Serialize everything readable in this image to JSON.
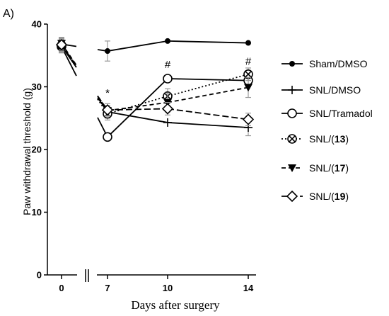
{
  "panel_label": "A)",
  "chart_data": {
    "type": "line",
    "xlabel": "Days after surgery",
    "ylabel": "Paw withdrawal threshold (g)",
    "ylim": [
      0,
      40
    ],
    "yticks": [
      "0",
      "10",
      "20",
      "30",
      "40"
    ],
    "x": [
      0,
      7,
      10,
      14
    ],
    "xticks": [
      "0",
      "7",
      "10",
      "14"
    ],
    "axis_break": "between 0 and 7",
    "series": [
      {
        "name": "Sham/DMSO",
        "marker": "filled-circle",
        "line": "solid",
        "values": [
          36.8,
          35.7,
          37.3,
          37.0
        ],
        "errors": [
          1.0,
          1.6,
          0,
          0
        ]
      },
      {
        "name": "SNL/DMSO",
        "marker": "plus",
        "line": "solid",
        "values": [
          36.5,
          26.0,
          24.3,
          23.5
        ],
        "errors": [
          1.0,
          1.0,
          0,
          1.3
        ]
      },
      {
        "name": "SNL/Tramadol",
        "marker": "open-circle",
        "line": "solid",
        "values": [
          36.4,
          22.0,
          31.3,
          31.0
        ],
        "errors": [
          1.0,
          0,
          0,
          1.0
        ]
      },
      {
        "name": "SNL/(13)",
        "marker": "circle-x",
        "line": "dotted",
        "values": [
          36.6,
          25.7,
          28.5,
          32.0
        ],
        "errors": [
          1.0,
          1.0,
          1.2,
          1.0
        ]
      },
      {
        "name": "SNL/(17)",
        "marker": "filled-triangle-down",
        "line": "dashed",
        "values": [
          36.9,
          26.2,
          27.5,
          29.9
        ],
        "errors": [
          1.0,
          0.8,
          1.5,
          1.6
        ]
      },
      {
        "name": "SNL/(19)",
        "marker": "open-diamond",
        "line": "long-dashed",
        "values": [
          36.7,
          26.3,
          26.5,
          24.8
        ],
        "errors": [
          1.0,
          1.0,
          1.0,
          1.0
        ]
      }
    ],
    "annotations": [
      {
        "text": "*",
        "x": 7,
        "y": 28.5
      },
      {
        "text": "#",
        "x": 10,
        "y": 33.0
      },
      {
        "text": "#",
        "x": 14,
        "y": 33.5
      }
    ],
    "legend_position": "right"
  }
}
